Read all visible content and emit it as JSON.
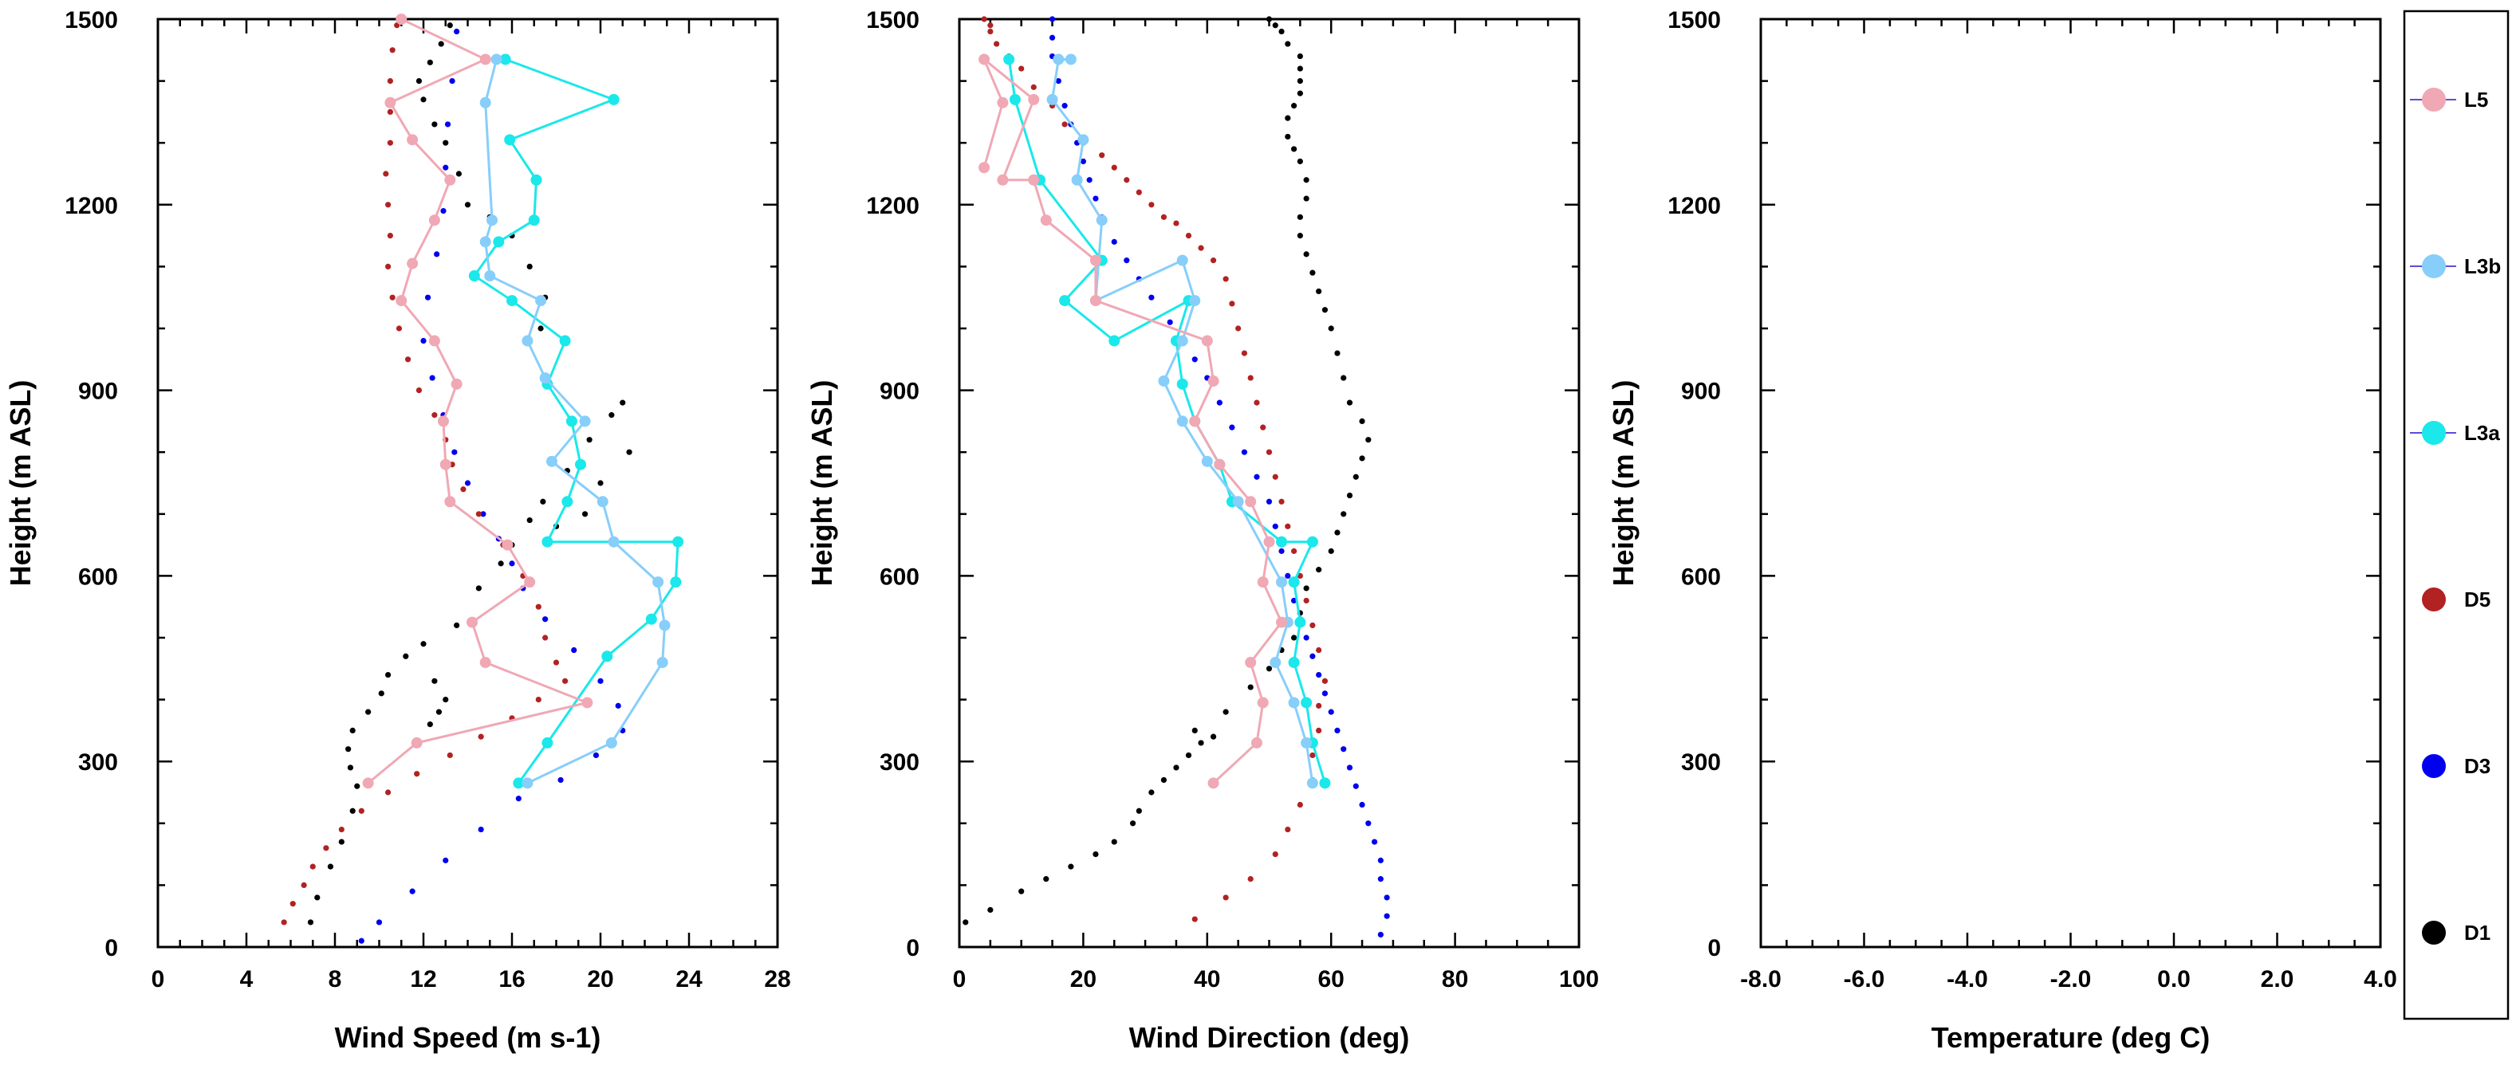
{
  "chart_data": [
    {
      "type": "scatter",
      "xlabel": "Wind Speed (m s-1)",
      "ylabel": "Height (m ASL)",
      "xlim": [
        0,
        28
      ],
      "ylim": [
        0,
        1500
      ],
      "xticks": [
        0,
        4,
        8,
        12,
        16,
        20,
        24,
        28
      ],
      "xtick_labels": [
        "0",
        "4",
        "8",
        "12",
        "16",
        "20",
        "24",
        "28"
      ],
      "yticks": [
        0,
        300,
        600,
        900,
        1200,
        1500
      ],
      "ytick_labels": [
        "0",
        "300",
        "600",
        "900",
        "1200",
        "1500"
      ],
      "grid": false,
      "series": [
        {
          "name": "D1",
          "style": "dots",
          "x": [
            6.9,
            7.2,
            7.8,
            8.3,
            8.8,
            9.0,
            8.7,
            8.6,
            8.8,
            9.5,
            10.1,
            10.4,
            11.2,
            12.0,
            12.5,
            13.0,
            12.7,
            12.3,
            13.5,
            14.5,
            15.5,
            16.0,
            16.8,
            17.4,
            18.5,
            19.5,
            20.5,
            21.0,
            21.3,
            20.0,
            19.3,
            18.0,
            17.3,
            17.5,
            16.8,
            16.0,
            15.0,
            14.0,
            13.6,
            13.0,
            12.5,
            12.0,
            11.8,
            12.3,
            12.8,
            13.2
          ],
          "y": [
            40,
            80,
            130,
            170,
            220,
            260,
            290,
            320,
            350,
            380,
            410,
            440,
            470,
            490,
            430,
            400,
            380,
            360,
            520,
            580,
            620,
            650,
            690,
            720,
            770,
            820,
            860,
            880,
            800,
            750,
            700,
            680,
            1000,
            1050,
            1100,
            1150,
            1180,
            1200,
            1250,
            1300,
            1330,
            1370,
            1400,
            1430,
            1460,
            1490
          ]
        },
        {
          "name": "D3",
          "style": "dots",
          "x": [
            9.2,
            10.0,
            11.5,
            13.0,
            14.6,
            16.3,
            18.2,
            19.8,
            21.0,
            20.8,
            20.0,
            18.8,
            17.5,
            16.5,
            16.0,
            15.4,
            14.7,
            14.0,
            13.4,
            12.9,
            12.4,
            12.0,
            12.2,
            12.6,
            12.9,
            13.0,
            13.1,
            13.3,
            13.5
          ],
          "y": [
            10,
            40,
            90,
            140,
            190,
            240,
            270,
            310,
            350,
            390,
            430,
            480,
            530,
            580,
            620,
            660,
            700,
            750,
            800,
            860,
            920,
            980,
            1050,
            1120,
            1190,
            1260,
            1330,
            1400,
            1480
          ]
        },
        {
          "name": "D5",
          "style": "dots",
          "x": [
            5.7,
            6.1,
            6.6,
            7.0,
            7.6,
            8.3,
            9.2,
            10.4,
            11.7,
            13.2,
            14.6,
            16.0,
            17.2,
            18.4,
            18.0,
            17.5,
            17.2,
            16.5,
            15.6,
            14.5,
            13.8,
            13.3,
            13.0,
            12.5,
            11.8,
            11.3,
            10.9,
            10.6,
            10.4,
            10.5,
            10.4,
            10.3,
            10.5,
            10.5,
            10.5,
            10.6,
            10.8
          ],
          "y": [
            40,
            70,
            100,
            130,
            160,
            190,
            220,
            250,
            280,
            310,
            340,
            370,
            400,
            430,
            460,
            500,
            550,
            600,
            650,
            700,
            740,
            780,
            820,
            860,
            900,
            950,
            1000,
            1050,
            1100,
            1150,
            1200,
            1250,
            1300,
            1350,
            1400,
            1450,
            1490
          ]
        },
        {
          "name": "L3a",
          "style": "line",
          "x": [
            16.3,
            17.6,
            20.3,
            22.3,
            23.4,
            23.5,
            17.6,
            18.5,
            19.1,
            18.7,
            17.6,
            18.4,
            16.0,
            14.3,
            15.4,
            17.0,
            17.1,
            15.9,
            20.6,
            15.7
          ],
          "y": [
            265,
            330,
            470,
            530,
            590,
            655,
            655,
            720,
            780,
            850,
            910,
            980,
            1045,
            1085,
            1140,
            1175,
            1240,
            1305,
            1370,
            1435
          ]
        },
        {
          "name": "L3b",
          "style": "line",
          "x": [
            16.7,
            20.5,
            22.8,
            22.9,
            22.6,
            20.6,
            20.1,
            17.8,
            19.3,
            17.5,
            16.7,
            17.3,
            15.0,
            14.8,
            15.1,
            14.8,
            15.3
          ],
          "y": [
            265,
            330,
            460,
            520,
            590,
            655,
            720,
            785,
            850,
            920,
            980,
            1045,
            1085,
            1140,
            1175,
            1365,
            1435
          ]
        },
        {
          "name": "L5",
          "style": "line",
          "x": [
            9.5,
            11.7,
            19.4,
            14.8,
            14.2,
            16.8,
            15.8,
            13.2,
            13.0,
            12.9,
            13.5,
            12.5,
            11.0,
            11.5,
            12.5,
            13.2,
            11.5,
            10.5,
            14.8,
            11.0
          ],
          "y": [
            265,
            330,
            395,
            460,
            525,
            590,
            650,
            720,
            780,
            850,
            910,
            980,
            1045,
            1105,
            1175,
            1240,
            1305,
            1365,
            1435,
            1500
          ]
        }
      ]
    },
    {
      "type": "scatter",
      "xlabel": "Wind Direction (deg)",
      "ylabel": "Height (m ASL)",
      "xlim": [
        0,
        100
      ],
      "ylim": [
        0,
        1500
      ],
      "xticks": [
        0,
        20,
        40,
        60,
        80,
        100
      ],
      "xtick_labels": [
        "0",
        "20",
        "40",
        "60",
        "80",
        "100"
      ],
      "yticks": [
        0,
        300,
        600,
        900,
        1200,
        1500
      ],
      "ytick_labels": [
        "0",
        "300",
        "600",
        "900",
        "1200",
        "1500"
      ],
      "grid": false,
      "series": [
        {
          "name": "D1",
          "style": "dots",
          "x": [
            1,
            5,
            10,
            14,
            18,
            22,
            25,
            28,
            29,
            31,
            33,
            35,
            37,
            39,
            41,
            38,
            43,
            47,
            50,
            52,
            54,
            55,
            56,
            58,
            60,
            61,
            62,
            63,
            64,
            65,
            66,
            65,
            63,
            62,
            61,
            60,
            59,
            58,
            57,
            56,
            55,
            55,
            56,
            56,
            55,
            54,
            53,
            53,
            54,
            55,
            55,
            55,
            55,
            53,
            52,
            51,
            50
          ],
          "y": [
            40,
            60,
            90,
            110,
            130,
            150,
            170,
            200,
            220,
            250,
            270,
            290,
            310,
            330,
            340,
            350,
            380,
            420,
            450,
            480,
            500,
            540,
            580,
            610,
            640,
            670,
            700,
            730,
            760,
            790,
            820,
            850,
            880,
            920,
            960,
            1000,
            1030,
            1060,
            1090,
            1120,
            1150,
            1180,
            1210,
            1240,
            1270,
            1290,
            1310,
            1340,
            1360,
            1380,
            1400,
            1420,
            1440,
            1460,
            1480,
            1490,
            1500
          ]
        },
        {
          "name": "D3",
          "style": "dots",
          "x": [
            68,
            69,
            69,
            68,
            68,
            67,
            66,
            65,
            64,
            63,
            62,
            61,
            60,
            59,
            58,
            57,
            56,
            55,
            54,
            53,
            52,
            51,
            50,
            48,
            46,
            44,
            42,
            40,
            38,
            36,
            34,
            31,
            29,
            27,
            25,
            23,
            22,
            21,
            20,
            19,
            18,
            17,
            16,
            15,
            15,
            15
          ],
          "y": [
            20,
            50,
            80,
            110,
            140,
            170,
            200,
            230,
            260,
            290,
            320,
            350,
            380,
            410,
            440,
            470,
            500,
            530,
            560,
            600,
            640,
            680,
            720,
            760,
            800,
            840,
            880,
            920,
            950,
            980,
            1010,
            1050,
            1080,
            1110,
            1140,
            1180,
            1210,
            1240,
            1270,
            1300,
            1330,
            1360,
            1400,
            1440,
            1470,
            1500
          ]
        },
        {
          "name": "D5",
          "style": "dots",
          "x": [
            38,
            43,
            47,
            51,
            53,
            55,
            57,
            57,
            58,
            58,
            59,
            58,
            57,
            56,
            55,
            54,
            53,
            52,
            51,
            50,
            49,
            48,
            47,
            46,
            45,
            44,
            43,
            41,
            39,
            37,
            35,
            33,
            31,
            29,
            27,
            25,
            23,
            20,
            17,
            15,
            12,
            10,
            8,
            6,
            5,
            5,
            4
          ],
          "y": [
            45,
            80,
            110,
            150,
            190,
            230,
            270,
            310,
            350,
            390,
            430,
            480,
            520,
            560,
            600,
            640,
            680,
            720,
            760,
            800,
            840,
            880,
            920,
            960,
            1000,
            1040,
            1080,
            1110,
            1130,
            1150,
            1170,
            1180,
            1200,
            1220,
            1240,
            1260,
            1280,
            1300,
            1330,
            1360,
            1390,
            1420,
            1440,
            1460,
            1480,
            1490,
            1500
          ]
        },
        {
          "name": "L3a",
          "style": "line",
          "x": [
            59,
            57,
            56,
            54,
            55,
            54,
            57,
            52,
            44,
            42,
            38,
            36,
            35,
            37,
            25,
            17,
            23,
            13,
            9,
            8
          ],
          "y": [
            265,
            330,
            395,
            460,
            525,
            590,
            655,
            655,
            720,
            780,
            850,
            910,
            980,
            1045,
            980,
            1045,
            1110,
            1240,
            1370,
            1435
          ]
        },
        {
          "name": "L3b",
          "style": "line",
          "x": [
            57,
            56,
            54,
            51,
            53,
            52,
            45,
            40,
            36,
            33,
            36,
            38,
            36,
            22,
            23,
            19,
            20,
            15,
            16,
            18
          ],
          "y": [
            265,
            330,
            395,
            460,
            525,
            590,
            720,
            785,
            850,
            915,
            980,
            1045,
            1110,
            1045,
            1175,
            1240,
            1305,
            1370,
            1435,
            1435
          ]
        },
        {
          "name": "L5",
          "style": "line",
          "x": [
            41,
            48,
            49,
            47,
            52,
            49,
            50,
            47,
            42,
            38,
            41,
            40,
            22,
            22,
            14,
            12,
            7,
            12,
            4,
            7,
            4
          ],
          "y": [
            265,
            330,
            395,
            460,
            525,
            590,
            655,
            720,
            780,
            850,
            915,
            980,
            1045,
            1110,
            1175,
            1240,
            1240,
            1370,
            1435,
            1365,
            1260
          ]
        }
      ]
    },
    {
      "type": "scatter",
      "xlabel": "Temperature (deg C)",
      "ylabel": "Height (m ASL)",
      "xlim": [
        -8,
        4
      ],
      "ylim": [
        0,
        1500
      ],
      "xticks": [
        -8,
        -6,
        -4,
        -2,
        0,
        2,
        4
      ],
      "xtick_labels": [
        "-8.0",
        "-6.0",
        "-4.0",
        "-2.0",
        "0.0",
        "2.0",
        "4.0"
      ],
      "yticks": [
        0,
        300,
        600,
        900,
        1200,
        1500
      ],
      "ytick_labels": [
        "0",
        "300",
        "600",
        "900",
        "1200",
        "1500"
      ],
      "grid": false,
      "series": []
    }
  ],
  "legend": {
    "placement": "right",
    "entries": [
      {
        "name": "L5",
        "color": "#f0a8b4",
        "line_color": "#5a4ed6",
        "kind": "line-marker"
      },
      {
        "name": "L3b",
        "color": "#87cefa",
        "line_color": "#5a4ed6",
        "kind": "line-marker"
      },
      {
        "name": "L3a",
        "color": "#1ae8ea",
        "line_color": "#5a4ed6",
        "kind": "line-marker"
      },
      {
        "name": "D5",
        "color": "#b22222",
        "kind": "marker"
      },
      {
        "name": "D3",
        "color": "#0000ee",
        "kind": "marker"
      },
      {
        "name": "D1",
        "color": "#000000",
        "kind": "marker"
      }
    ]
  },
  "colors": {
    "D1": "#000000",
    "D3": "#0000ee",
    "D5": "#b22222",
    "L3a": "#1ae8ea",
    "L3b": "#87cefa",
    "L5": "#f0a8b4"
  }
}
